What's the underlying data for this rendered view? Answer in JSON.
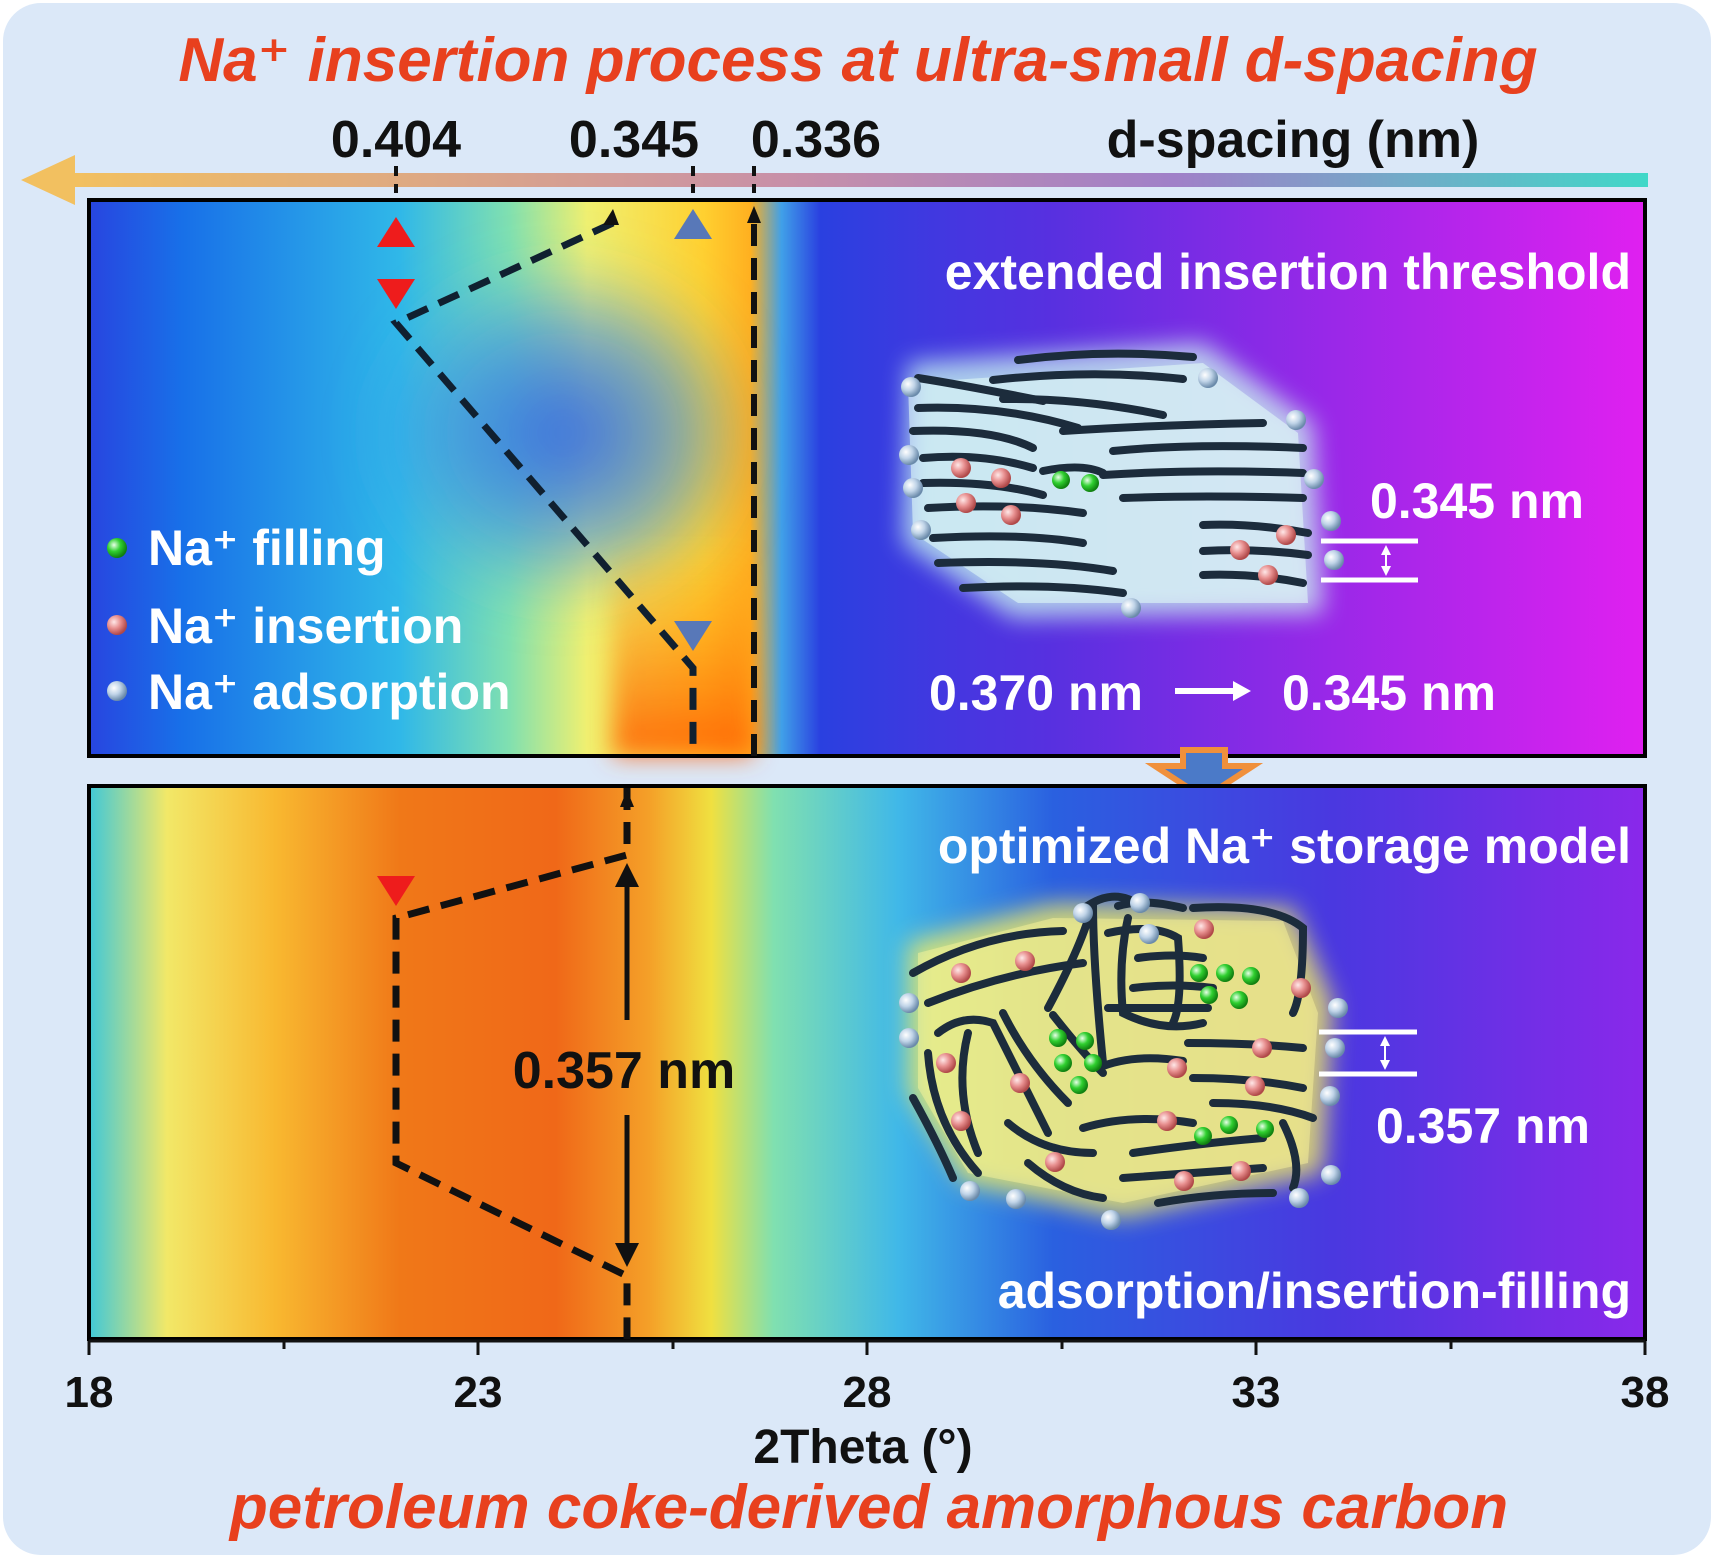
{
  "title": "Na⁺ insertion process at ultra-small d-spacing",
  "footer": "petroleum coke-derived amorphous carbon",
  "d_axis": {
    "label": "d-spacing (nm)",
    "values": [
      "0.404",
      "0.345",
      "0.336"
    ]
  },
  "top_panel": {
    "label": "extended insertion threshold",
    "spacing_label": "0.345 nm",
    "transition_from": "0.370 nm",
    "transition_to": "0.345 nm"
  },
  "bottom_panel": {
    "label": "optimized Na⁺ storage model",
    "mechanism": "adsorption/insertion-filling",
    "measure_label": "0.357 nm",
    "spacing_label": "0.357 nm"
  },
  "legend": [
    {
      "label": "Na⁺ filling",
      "color": "#22c81e"
    },
    {
      "label": "Na⁺ insertion",
      "color": "#e07070"
    },
    {
      "label": "Na⁺ adsorption",
      "color": "#a8c4de"
    }
  ],
  "x_axis": {
    "title": "2Theta (°)",
    "range": [
      18,
      38
    ],
    "ticks": [
      "18",
      "23",
      "28",
      "33",
      "38"
    ]
  },
  "colors": {
    "title_red": "#e8401e",
    "card_bg": "#dbe8f8",
    "arrow_start": "#f2c060",
    "arrow_end": "#40d8c8"
  }
}
